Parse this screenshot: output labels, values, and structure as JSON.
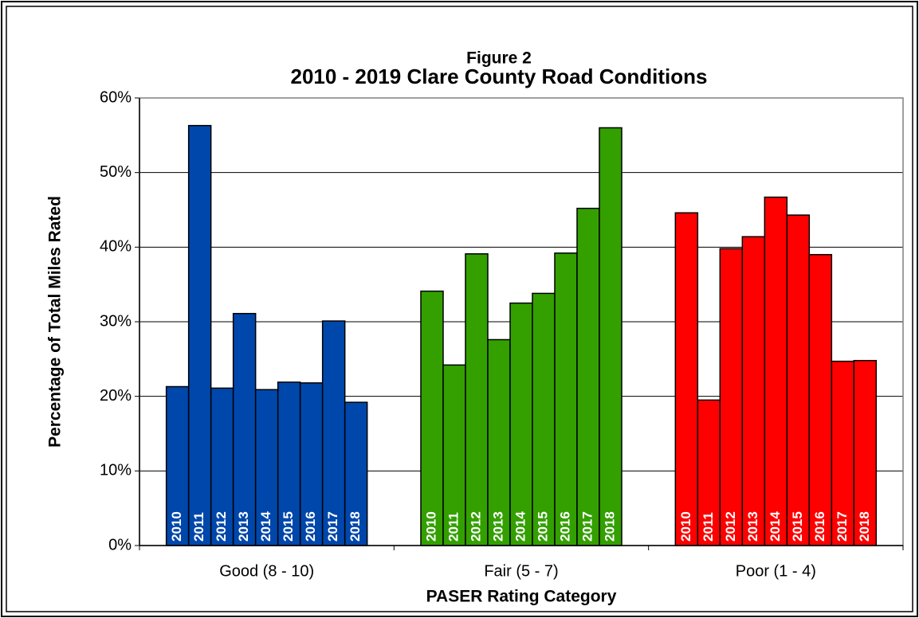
{
  "chart_data": {
    "type": "bar",
    "title": "Figure 2",
    "subtitle": "2010 - 2019 Clare County Road Conditions",
    "x_label": "PASER Rating Category",
    "y_label": "Percentage of Total Miles Rated",
    "categories": [
      "Good (8 - 10)",
      "Fair (5 - 7)",
      "Poor (1 - 4)"
    ],
    "colors": [
      "#0047ab",
      "#33a000",
      "#ff0000"
    ],
    "series": [
      {
        "name": "2010",
        "values": [
          21.3,
          34.1,
          44.6
        ]
      },
      {
        "name": "2011",
        "values": [
          56.3,
          24.2,
          19.5
        ]
      },
      {
        "name": "2012",
        "values": [
          21.1,
          39.1,
          39.8
        ]
      },
      {
        "name": "2013",
        "values": [
          31.1,
          27.6,
          41.4
        ]
      },
      {
        "name": "2014",
        "values": [
          20.9,
          32.5,
          46.7
        ]
      },
      {
        "name": "2015",
        "values": [
          21.9,
          33.8,
          44.3
        ]
      },
      {
        "name": "2016",
        "values": [
          21.8,
          39.2,
          39.0
        ]
      },
      {
        "name": "2017",
        "values": [
          30.1,
          45.2,
          24.7
        ]
      },
      {
        "name": "2018",
        "values": [
          19.2,
          56.0,
          24.8
        ]
      }
    ],
    "ylim": [
      0,
      60
    ],
    "yticks": [
      {
        "value": 0,
        "label": "0%"
      },
      {
        "value": 10,
        "label": "10%"
      },
      {
        "value": 20,
        "label": "20%"
      },
      {
        "value": 30,
        "label": "30%"
      },
      {
        "value": 40,
        "label": "40%"
      },
      {
        "value": 50,
        "label": "50%"
      },
      {
        "value": 60,
        "label": "60%"
      }
    ],
    "grid": true
  }
}
